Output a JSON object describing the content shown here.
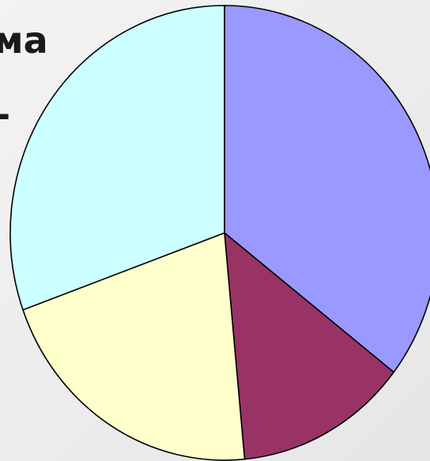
{
  "title_fragments": {
    "line1": "ма",
    "line2": "-"
  },
  "chart_data": {
    "type": "pie",
    "title": "",
    "start_angle_deg": 0,
    "direction": "clockwise",
    "slices": [
      {
        "value": 35.5,
        "color": "#9999ff"
      },
      {
        "value": 13.0,
        "color": "#993366"
      },
      {
        "value": 21.0,
        "color": "#ffffcc"
      },
      {
        "value": 30.5,
        "color": "#ccffff"
      }
    ]
  }
}
